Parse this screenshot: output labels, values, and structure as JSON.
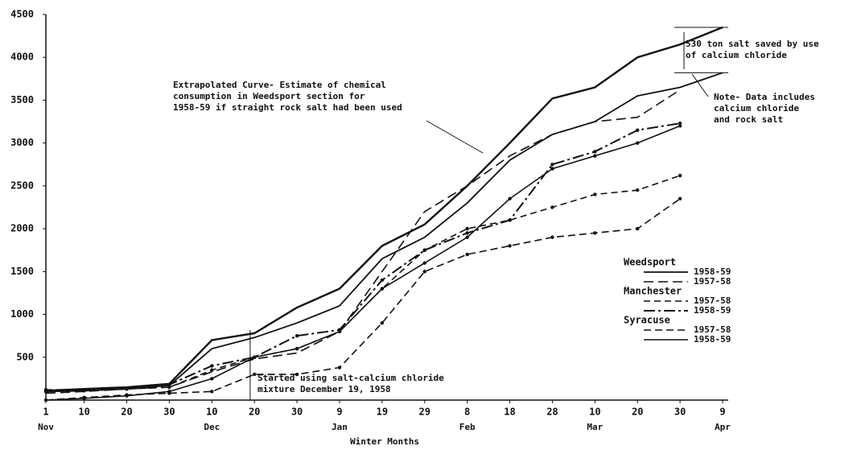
{
  "chart_data": {
    "type": "line",
    "xlabel": "Winter Months",
    "xlim": [
      0,
      159
    ],
    "ylim": [
      0,
      4500
    ],
    "xticks": [
      {
        "value": 0,
        "label": "1"
      },
      {
        "value": 9,
        "label": "10"
      },
      {
        "value": 19,
        "label": "20"
      },
      {
        "value": 29,
        "label": "30"
      },
      {
        "value": 39,
        "label": "10"
      },
      {
        "value": 49,
        "label": "20"
      },
      {
        "value": 59,
        "label": "30"
      },
      {
        "value": 69,
        "label": "9"
      },
      {
        "value": 79,
        "label": "19"
      },
      {
        "value": 89,
        "label": "29"
      },
      {
        "value": 99,
        "label": "8"
      },
      {
        "value": 109,
        "label": "18"
      },
      {
        "value": 119,
        "label": "28"
      },
      {
        "value": 129,
        "label": "10"
      },
      {
        "value": 139,
        "label": "20"
      },
      {
        "value": 149,
        "label": "30"
      },
      {
        "value": 159,
        "label": "9"
      }
    ],
    "month_labels": [
      {
        "value": 0,
        "label": "Nov"
      },
      {
        "value": 39,
        "label": "Dec"
      },
      {
        "value": 69,
        "label": "Jan"
      },
      {
        "value": 99,
        "label": "Feb"
      },
      {
        "value": 129,
        "label": "Mar"
      },
      {
        "value": 159,
        "label": "Apr"
      }
    ],
    "yticks": [
      500,
      1000,
      1500,
      2000,
      2500,
      3000,
      3500,
      4000,
      4500
    ],
    "x": [
      0,
      9,
      19,
      29,
      39,
      49,
      59,
      69,
      79,
      89,
      99,
      109,
      119,
      129,
      139,
      149,
      159
    ],
    "series": [
      {
        "color": "#111",
        "dash": "none",
        "width": 2.4,
        "values": [
          110,
          130,
          150,
          190,
          700,
          780,
          1080,
          1300,
          1800,
          2050,
          2500,
          3000,
          3520,
          3650,
          4000,
          4150,
          4350
        ]
      },
      {
        "group": "Weedsport",
        "name": "1958-59",
        "color": "#111",
        "dash": "none",
        "width": 1.8,
        "values": [
          100,
          110,
          130,
          170,
          600,
          730,
          900,
          1100,
          1650,
          1900,
          2300,
          2800,
          3100,
          3250,
          3550,
          3650,
          3820
        ]
      },
      {
        "group": "Weedsport",
        "name": "1957-58",
        "color": "#111",
        "dash": "12 6",
        "width": 1.6,
        "values": [
          80,
          100,
          130,
          150,
          330,
          480,
          550,
          800,
          1500,
          2200,
          2500,
          2850,
          3100,
          3250,
          3300,
          3620,
          null
        ]
      },
      {
        "group": "Manchester",
        "name": "1957-58",
        "color": "#111",
        "dash": "8 5",
        "width": 1.6,
        "marker": true,
        "values": [
          120,
          120,
          130,
          150,
          350,
          500,
          600,
          800,
          1300,
          1750,
          2000,
          2100,
          2250,
          2400,
          2450,
          2620,
          null
        ]
      },
      {
        "group": "Manchester",
        "name": "1958-59",
        "color": "#111",
        "dash": "14 4 3 4",
        "width": 2.0,
        "marker": true,
        "values": [
          100,
          110,
          130,
          180,
          400,
          500,
          750,
          820,
          1400,
          1750,
          1950,
          2100,
          2750,
          2900,
          3150,
          3230,
          null
        ]
      },
      {
        "group": "Syracuse",
        "name": "1957-58",
        "color": "#111",
        "dash": "9 5",
        "width": 1.6,
        "marker": true,
        "values": [
          0,
          30,
          60,
          80,
          100,
          300,
          300,
          380,
          900,
          1500,
          1700,
          1800,
          1900,
          1950,
          2000,
          2350,
          null
        ]
      },
      {
        "group": "Syracuse",
        "name": "1958-59",
        "color": "#111",
        "dash": "none",
        "width": 1.6,
        "marker": true,
        "values": [
          0,
          20,
          50,
          100,
          250,
          500,
          600,
          800,
          1300,
          1600,
          1900,
          2350,
          2700,
          2850,
          3000,
          3200,
          null
        ]
      }
    ],
    "annotations": {
      "extrapolated": [
        "Extrapolated Curve- Estimate of chemical",
        "consumption in Weedsport section for",
        "1958-59 if straight rock salt had been used"
      ],
      "saved": [
        "530 ton salt saved by use",
        "of calcium chloride"
      ],
      "note": [
        "Note- Data includes",
        "calcium chloride",
        "and rock salt"
      ],
      "started": [
        "Started using salt-calcium chloride",
        "mixture December 19, 1958"
      ]
    }
  }
}
